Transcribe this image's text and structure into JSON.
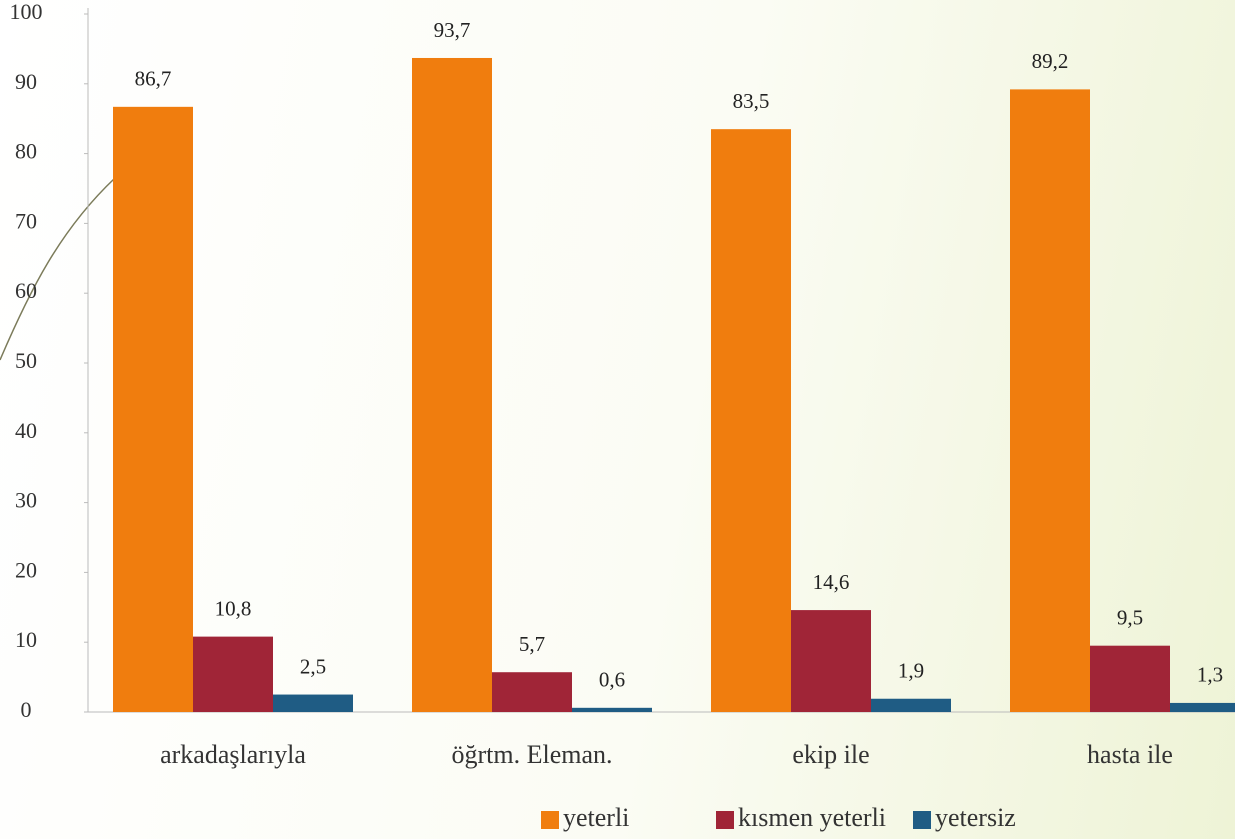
{
  "chart_data": {
    "type": "bar",
    "categories": [
      "arkadaşlarıyla",
      "öğrtm. Eleman.",
      "ekip ile",
      "hasta ile"
    ],
    "series": [
      {
        "name": "yeterli",
        "color": "#f07d0e",
        "values": [
          86.7,
          93.7,
          83.5,
          89.2
        ],
        "value_labels": [
          "86,7",
          "93,7",
          "83,5",
          "89,2"
        ]
      },
      {
        "name": "kısmen yeterli",
        "color": "#a02537",
        "values": [
          10.8,
          5.7,
          14.6,
          9.5
        ],
        "value_labels": [
          "10,8",
          "5,7",
          "14,6",
          "9,5"
        ]
      },
      {
        "name": "yetersiz",
        "color": "#1f5c84",
        "values": [
          2.5,
          0.6,
          1.9,
          1.3
        ],
        "value_labels": [
          "2,5",
          "0,6",
          "1,9",
          "1,3"
        ]
      }
    ],
    "ylim": [
      0,
      100
    ],
    "yticks": [
      0,
      10,
      20,
      30,
      40,
      50,
      60,
      70,
      80,
      90,
      100
    ],
    "legend": "bottom"
  }
}
